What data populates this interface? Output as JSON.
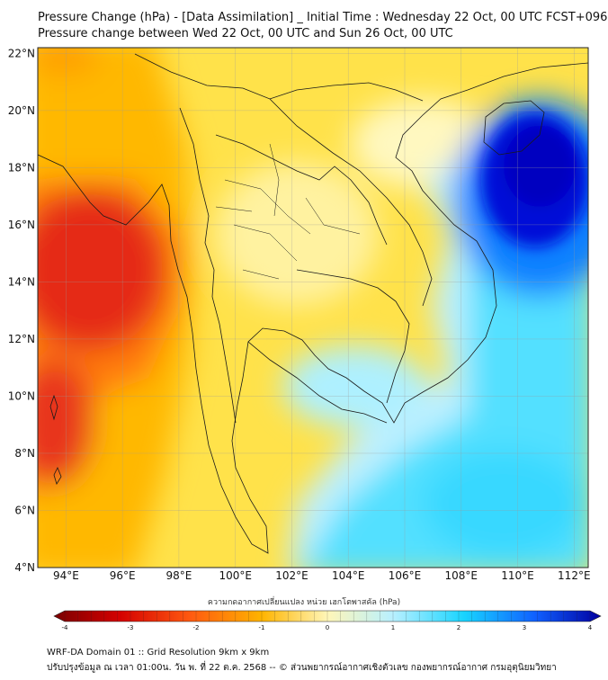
{
  "title_line1": "Pressure Change (hPa) - [Data Assimilation] _ Initial Time : Wednesday 22 Oct, 00 UTC FCST+096",
  "title_line2": "Pressure change between Wed 22 Oct, 00 UTC and Sun 26 Oct, 00 UTC",
  "map": {
    "lon_range": [
      93,
      112.5
    ],
    "lat_range": [
      4,
      22.2
    ],
    "lat_labels": [
      "22°N",
      "20°N",
      "18°N",
      "16°N",
      "14°N",
      "12°N",
      "10°N",
      "8°N",
      "6°N",
      "4°N"
    ],
    "lat_values": [
      22,
      20,
      18,
      16,
      14,
      12,
      10,
      8,
      6,
      4
    ],
    "lon_labels": [
      "94°E",
      "96°E",
      "98°E",
      "100°E",
      "102°E",
      "104°E",
      "106°E",
      "108°E",
      "110°E",
      "112°E"
    ],
    "lon_values": [
      94,
      96,
      98,
      100,
      102,
      104,
      106,
      108,
      110,
      112
    ],
    "features": [
      {
        "name": "pressure-rise-high-gulf-of-tonkin-east",
        "lon": 111.5,
        "lat": 17.5,
        "value": 4.2
      },
      {
        "name": "pressure-fall-low-andaman-sea",
        "lon": 94.5,
        "lat": 14.5,
        "value": -3.0
      },
      {
        "name": "pressure-fall-low-west-edge-south",
        "lon": 93.2,
        "lat": 8.2,
        "value": -3.2
      }
    ]
  },
  "colorbar": {
    "title": "ความกดอากาศเปลี่ยนแปลง หน่วย เฮกโตพาสคัล (hPa)",
    "min": -4,
    "max": 4,
    "tick_labels": [
      "-4",
      "-3",
      "-2",
      "-1",
      "0",
      "1",
      "2",
      "3",
      "4"
    ],
    "tick_values": [
      -4,
      -3,
      -2,
      -1,
      0,
      1,
      2,
      3,
      4
    ]
  },
  "footer_line1": "WRF-DA Domain 01 :: Grid Resolution 9km x 9km",
  "footer_line2": "ปรับปรุงข้อมูล ณ เวลา 01:00น. วัน พ. ที่ 22 ต.ค. 2568 -- © ส่วนพยากรณ์อากาศเชิงตัวเลข กองพยากรณ์อากาศ กรมอุตุนิยมวิทยา",
  "colors": {
    "strong_fall": "#8a0000",
    "fall": "#e0301a",
    "slight_fall": "#f5b800",
    "neutral": "#fff8b0",
    "slight_rise": "#c8f4ff",
    "rise": "#10d8ff",
    "strong_rise": "#0000d0"
  }
}
